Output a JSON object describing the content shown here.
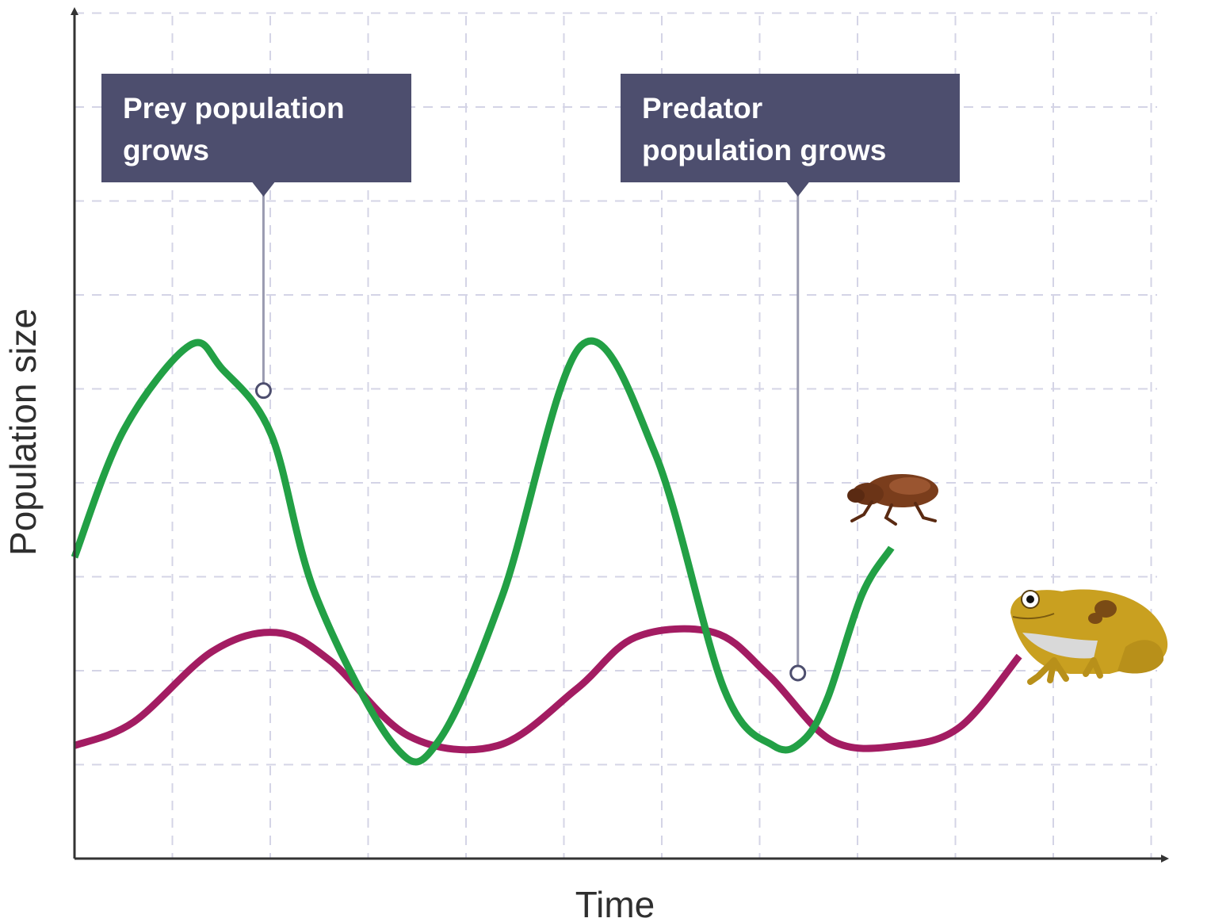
{
  "chart_data": {
    "type": "line",
    "title": "",
    "xlabel": "Time",
    "ylabel": "Population size",
    "x_ticks": "none",
    "y_ticks": "none",
    "grid": true,
    "grid_style": "dashed",
    "legend": "none",
    "series": [
      {
        "role": "prey",
        "icon": "flea-icon",
        "color": "#22a045",
        "x": [
          0,
          0.5,
          1.17,
          1.5,
          2,
          2.45,
          3.25,
          3.7,
          4.35,
          5.15,
          5.9,
          6.6,
          7.1,
          7.4,
          7.65,
          8.0,
          8.3
        ],
        "y": [
          3.2,
          4.55,
          5.45,
          5.2,
          4.5,
          2.8,
          1.2,
          1.25,
          2.8,
          5.45,
          4.3,
          1.8,
          1.2,
          1.25,
          1.7,
          2.8,
          3.3
        ]
      },
      {
        "role": "predator",
        "icon": "frog-icon",
        "color": "#a31c62",
        "x": [
          0,
          0.6,
          1.4,
          2.05,
          2.6,
          3.4,
          4.3,
          5.1,
          5.7,
          6.5,
          7.05,
          7.7,
          8.4,
          9.0,
          9.6
        ],
        "y": [
          1.2,
          1.45,
          2.2,
          2.4,
          2.1,
          1.3,
          1.2,
          1.8,
          2.35,
          2.4,
          1.95,
          1.25,
          1.2,
          1.4,
          2.15
        ]
      }
    ],
    "xlim": [
      0,
      11
    ],
    "ylim": [
      0,
      9
    ],
    "annotations": [
      {
        "text_lines": [
          "Prey population",
          "grows"
        ],
        "series": "prey",
        "x": 1.92,
        "y": 4.97
      },
      {
        "text_lines": [
          "Predator",
          "population grows"
        ],
        "series": "predator",
        "x": 7.35,
        "y": 1.97
      }
    ],
    "colors": {
      "axis": "#333333",
      "grid": "#d4d4e6",
      "callout_bg": "#4d4e6e",
      "callout_leader": "#9a9bb0"
    }
  }
}
